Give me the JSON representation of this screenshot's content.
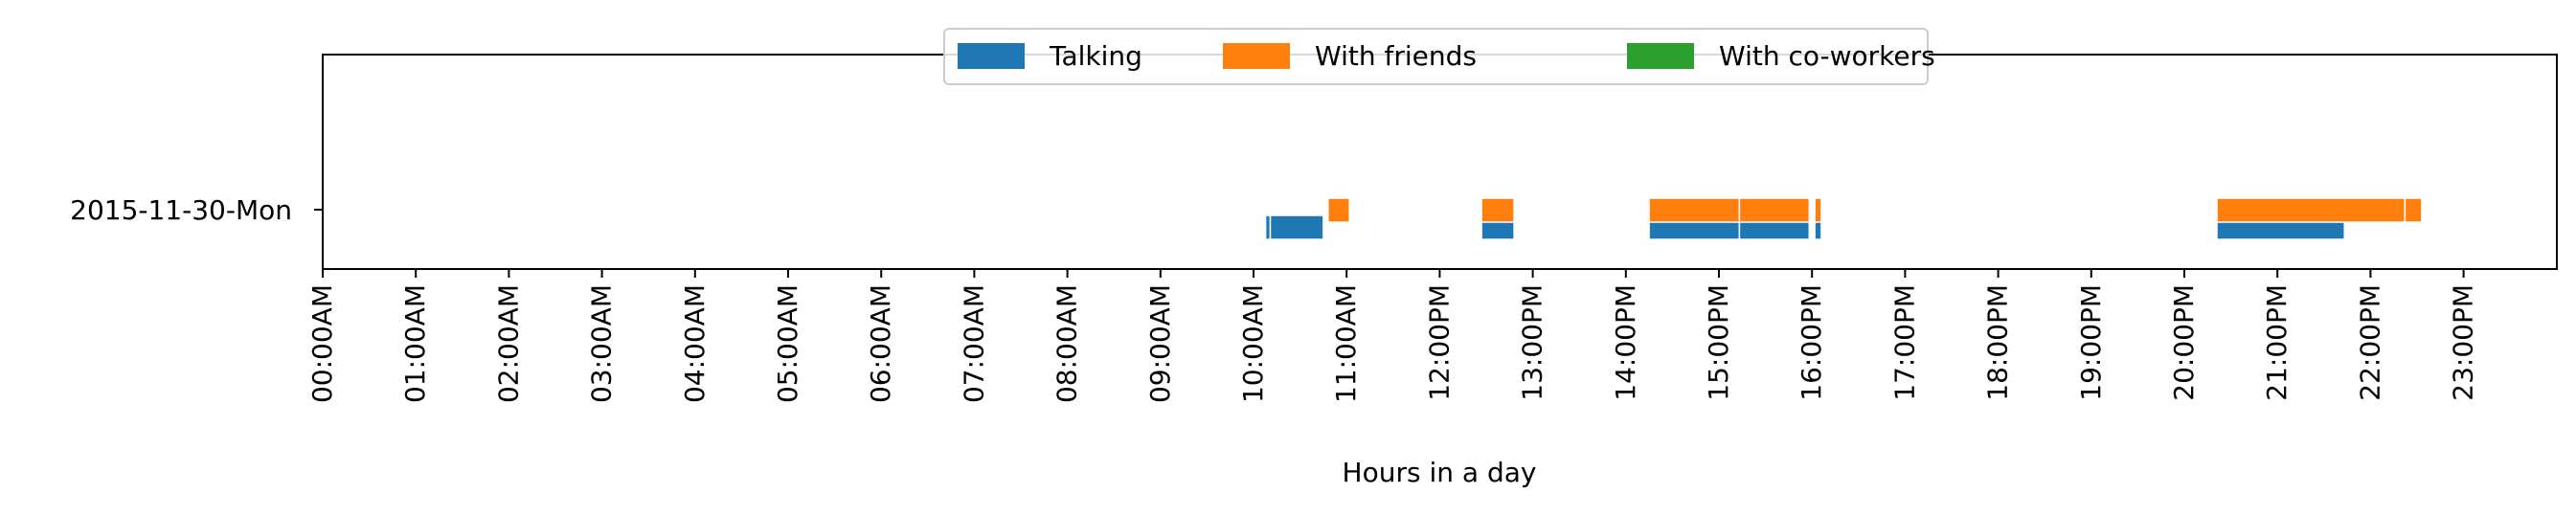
{
  "chart_data": {
    "type": "timeline",
    "xlabel": "Hours in a day",
    "x_range_hours": [
      0,
      24
    ],
    "x_ticks": [
      "00:00AM",
      "01:00AM",
      "02:00AM",
      "03:00AM",
      "04:00AM",
      "05:00AM",
      "06:00AM",
      "07:00AM",
      "08:00AM",
      "09:00AM",
      "10:00AM",
      "11:00AM",
      "12:00PM",
      "13:00PM",
      "14:00PM",
      "15:00PM",
      "16:00PM",
      "17:00PM",
      "18:00PM",
      "19:00PM",
      "20:00PM",
      "21:00PM",
      "22:00PM",
      "23:00PM"
    ],
    "y_categories": [
      "2015-11-30-Mon"
    ],
    "legend_placement": "top-center",
    "series": [
      {
        "name": "Talking",
        "color": "#1f77b4",
        "segments": [
          [
            10.13,
            10.18
          ],
          [
            10.18,
            10.75
          ],
          [
            12.45,
            12.8
          ],
          [
            14.25,
            15.22
          ],
          [
            15.22,
            15.97
          ],
          [
            16.03,
            16.1
          ],
          [
            20.35,
            21.72
          ]
        ]
      },
      {
        "name": "With friends",
        "color": "#ff7f0e",
        "segments": [
          [
            10.8,
            11.03
          ],
          [
            12.45,
            12.8
          ],
          [
            14.25,
            15.22
          ],
          [
            15.22,
            15.97
          ],
          [
            16.03,
            16.1
          ],
          [
            20.35,
            22.37
          ],
          [
            22.37,
            22.55
          ]
        ]
      },
      {
        "name": "With co-workers",
        "color": "#2ca02c",
        "segments": []
      }
    ]
  }
}
